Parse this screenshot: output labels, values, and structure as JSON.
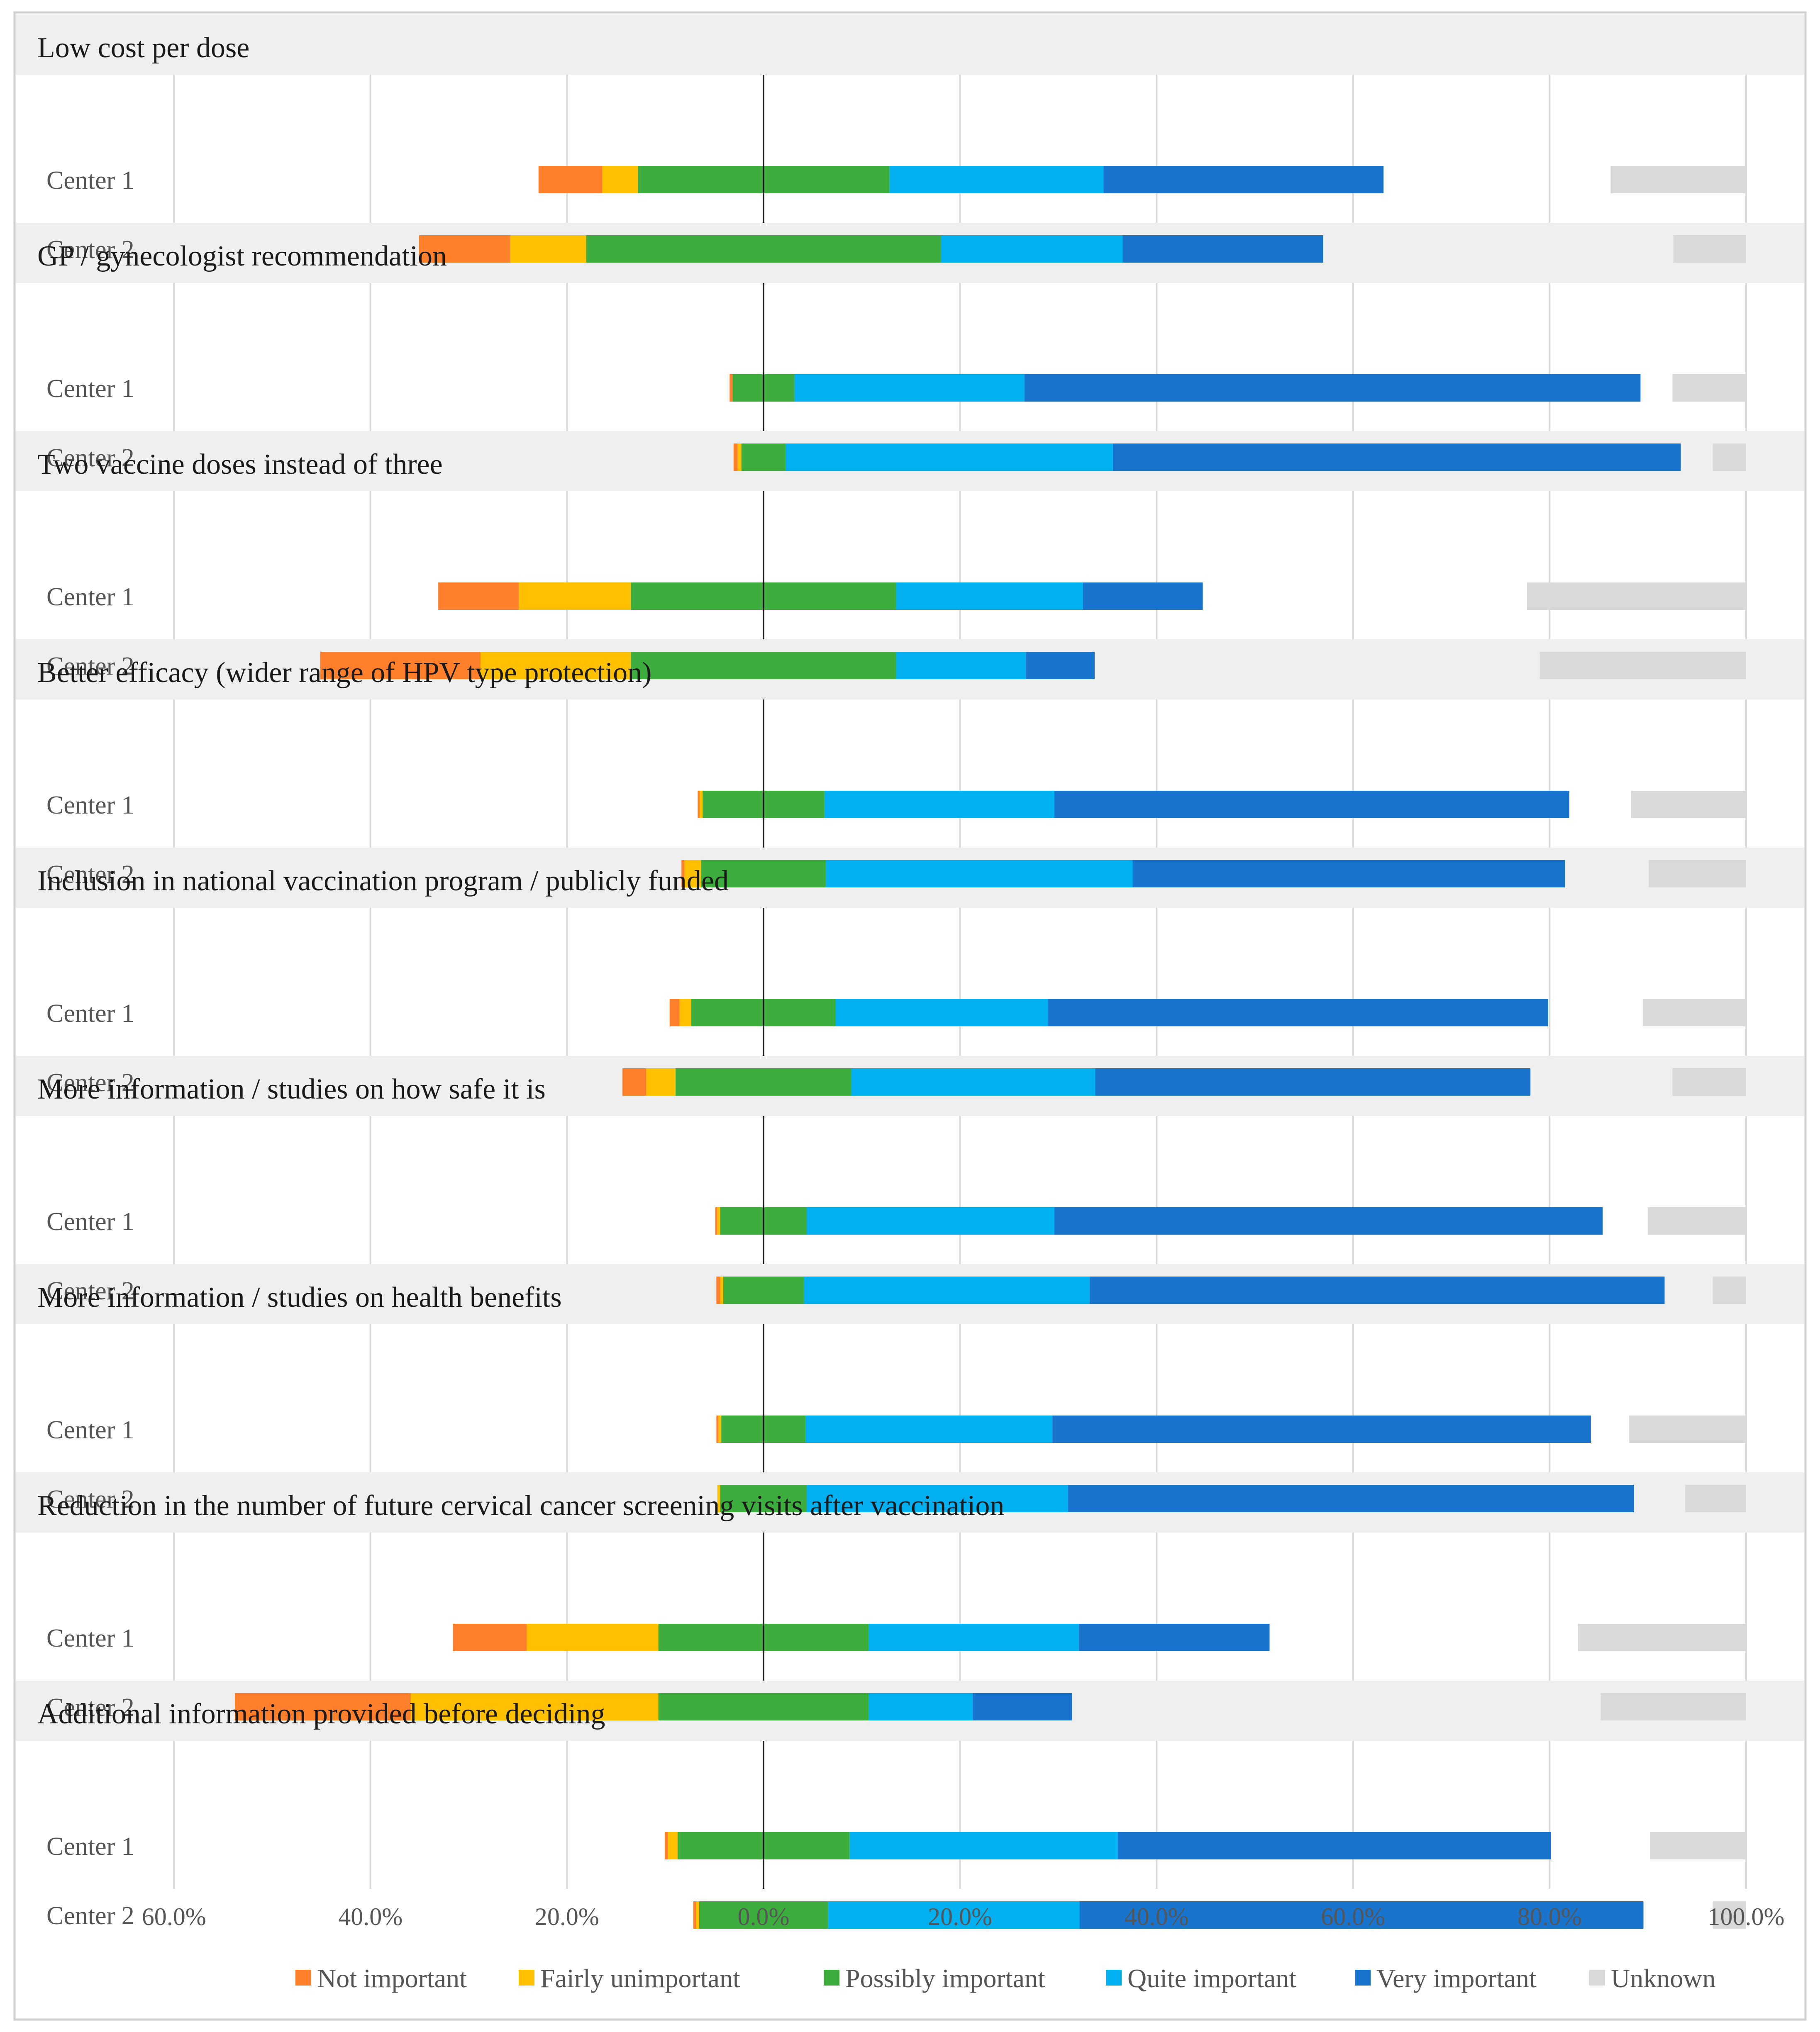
{
  "chart_data": {
    "type": "bar",
    "subtype": "diverging-stacked-horizontal",
    "axis": {
      "ticks": [
        -60,
        -40,
        -20,
        0,
        20,
        40,
        60,
        80,
        100
      ],
      "tick_labels": [
        "60.0%",
        "40.0%",
        "20.0%",
        "0.0%",
        "20.0%",
        "40.0%",
        "60.0%",
        "80.0%",
        "100.0%"
      ],
      "xlim": [
        -60,
        100
      ],
      "grid": true
    },
    "legend": {
      "placement": "bottom",
      "items": [
        {
          "name": "Not important",
          "color": "#FF7F2A"
        },
        {
          "name": "Fairly unimportant",
          "color": "#FFC000"
        },
        {
          "name": "Possibly important",
          "color": "#3DAE3D"
        },
        {
          "name": "Quite important",
          "color": "#00B0F0"
        },
        {
          "name": "Very important",
          "color": "#1874CD"
        },
        {
          "name": "Unknown",
          "color": "#D9D9D9"
        }
      ]
    },
    "series_order": [
      "Not important",
      "Fairly unimportant",
      "Possibly important",
      "Quite important",
      "Very important",
      "Unknown"
    ],
    "groups": [
      {
        "title": "Low cost per dose",
        "rows": [
          {
            "label": "Center 1",
            "values": [
              6.5,
              3.6,
              25.6,
              21.8,
              28.5,
              13.8
            ]
          },
          {
            "label": "Center 2",
            "values": [
              9.3,
              7.7,
              36.1,
              18.5,
              20.4,
              7.4
            ]
          }
        ]
      },
      {
        "title": "GP / gynecologist recommendation",
        "rows": [
          {
            "label": "Center 1",
            "values": [
              0.3,
              0,
              6.3,
              23.4,
              62.7,
              7.5
            ]
          },
          {
            "label": "Center 2",
            "values": [
              0.4,
              0.4,
              4.5,
              33.3,
              57.8,
              3.4
            ]
          }
        ]
      },
      {
        "title": "Two vaccine doses instead of three",
        "rows": [
          {
            "label": "Center 1",
            "values": [
              8.2,
              11.4,
              27.0,
              19.0,
              12.2,
              22.3
            ]
          },
          {
            "label": "Center 2",
            "values": [
              16.3,
              15.3,
              27.0,
              13.2,
              7.0,
              21.0
            ]
          }
        ]
      },
      {
        "title": "Better efficacy (wider range of HPV type protection)",
        "rows": [
          {
            "label": "Center 1",
            "values": [
              0.2,
              0.3,
              12.4,
              23.4,
              52.4,
              11.7
            ]
          },
          {
            "label": "Center 2",
            "values": [
              0.3,
              1.7,
              12.7,
              31.2,
              44.0,
              9.9
            ]
          }
        ]
      },
      {
        "title": "Inclusion in national vaccination program / publicly funded",
        "rows": [
          {
            "label": "Center 1",
            "values": [
              1.0,
              1.2,
              14.7,
              21.6,
              50.9,
              10.5
            ]
          },
          {
            "label": "Center 2",
            "values": [
              2.4,
              3.0,
              17.9,
              24.8,
              44.3,
              7.5
            ]
          }
        ]
      },
      {
        "title": "More information / studies on how safe it is",
        "rows": [
          {
            "label": "Center 1",
            "values": [
              0.2,
              0.3,
              8.8,
              25.2,
              55.8,
              10.0
            ]
          },
          {
            "label": "Center 2",
            "values": [
              0.4,
              0.3,
              8.2,
              29.1,
              58.5,
              3.4
            ]
          }
        ]
      },
      {
        "title": "More information / studies on health benefits",
        "rows": [
          {
            "label": "Center 1",
            "values": [
              0.2,
              0.3,
              8.6,
              25.1,
              54.8,
              11.9
            ]
          },
          {
            "label": "Center 2",
            "values": [
              0,
              0.3,
              8.8,
              26.6,
              57.6,
              6.2
            ]
          }
        ]
      },
      {
        "title": "Reduction in the number of future cervical cancer screening visits after vaccination",
        "rows": [
          {
            "label": "Center 1",
            "values": [
              7.5,
              13.4,
              21.4,
              21.4,
              19.4,
              17.1
            ]
          },
          {
            "label": "Center 2",
            "values": [
              17.9,
              25.2,
              21.4,
              10.6,
              10.1,
              14.8
            ]
          }
        ]
      },
      {
        "title": "Additional information provided before deciding",
        "rows": [
          {
            "label": "Center 1",
            "values": [
              0.3,
              1.0,
              17.5,
              27.3,
              44.1,
              9.8
            ]
          },
          {
            "label": "Center 2",
            "values": [
              0.3,
              0.3,
              13.1,
              25.6,
              57.4,
              3.4
            ]
          }
        ]
      }
    ]
  }
}
